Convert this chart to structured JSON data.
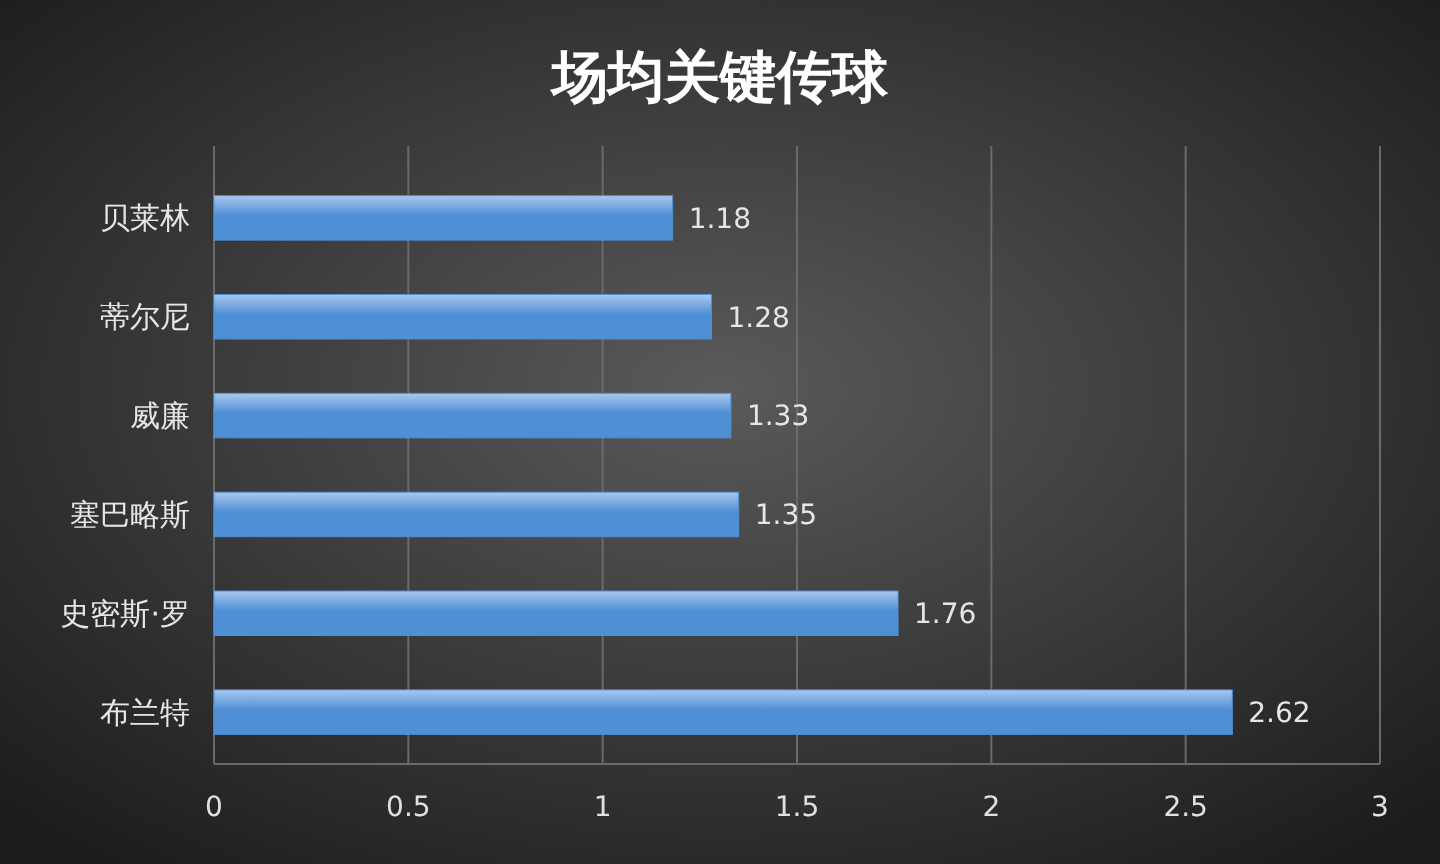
{
  "chart_data": {
    "type": "bar",
    "title": "场均关键传球",
    "orientation": "horizontal",
    "categories": [
      "贝莱林",
      "蒂尔尼",
      "威廉",
      "塞巴略斯",
      "史密斯·罗",
      "布兰特"
    ],
    "values": [
      1.18,
      1.28,
      1.33,
      1.35,
      1.76,
      2.62
    ],
    "color": "#4f8fd6",
    "xlim": [
      0,
      3
    ],
    "xticks": [
      0,
      0.5,
      1,
      1.5,
      2,
      2.5,
      3
    ],
    "grid": "x",
    "data_labels": true
  }
}
